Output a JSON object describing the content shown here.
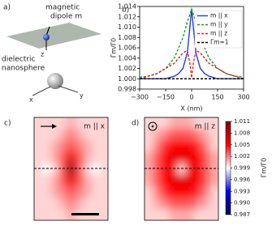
{
  "diagram": {
    "panel_label": "a)",
    "dipole_label": [
      "magnetic",
      "dipole m"
    ],
    "sphere_label": [
      "dielectric",
      "nanosphere"
    ],
    "axes": [
      "z",
      "x",
      "y"
    ]
  },
  "chart_data": [
    {
      "type": "line",
      "panel_label": "b)",
      "xlabel": "X (nm)",
      "ylabel": "Γm/Γ0",
      "x": [
        -300,
        -250,
        -200,
        -150,
        -100,
        -75,
        -50,
        -25,
        -10,
        0,
        10,
        25,
        50,
        75,
        100,
        150,
        200,
        250,
        300
      ],
      "series": [
        {
          "name": "m || x",
          "color": "#1f3fe0",
          "dash": "solid",
          "values": [
            1.0,
            1.0,
            1.0,
            1.0,
            1.0005,
            1.001,
            1.002,
            1.005,
            1.01,
            1.0135,
            1.01,
            1.005,
            1.002,
            1.001,
            1.0005,
            1.0,
            1.0,
            1.0,
            1.0
          ]
        },
        {
          "name": "m || y",
          "color": "#1a9a1a",
          "dash": "dashed",
          "values": [
            1.0003,
            1.0005,
            1.001,
            1.002,
            1.004,
            1.006,
            1.008,
            1.011,
            1.0125,
            1.0135,
            1.0125,
            1.011,
            1.008,
            1.006,
            1.004,
            1.002,
            1.001,
            1.0005,
            1.0003
          ]
        },
        {
          "name": "m || z",
          "color": "#e0202a",
          "dash": "dashed",
          "values": [
            1.0,
            1.0005,
            1.001,
            1.002,
            1.003,
            1.004,
            1.005,
            1.0055,
            1.003,
            1.0002,
            1.003,
            1.0055,
            1.005,
            1.004,
            1.003,
            1.002,
            1.001,
            1.0005,
            1.0
          ]
        },
        {
          "name": "Γm=1",
          "color": "#000000",
          "dash": "dashed",
          "values": [
            1,
            1,
            1,
            1,
            1,
            1,
            1,
            1,
            1,
            1,
            1,
            1,
            1,
            1,
            1,
            1,
            1,
            1,
            1
          ]
        }
      ],
      "xlim": [
        -300,
        300
      ],
      "xticks": [
        {
          "value": -300,
          "label": "−300"
        },
        {
          "value": -150,
          "label": "−150"
        },
        0,
        150,
        300
      ],
      "ylim": [
        0.998,
        1.014
      ],
      "yticks": [
        0.998,
        {
          "value": 1,
          "label": "1.000"
        },
        1.002,
        1.004,
        1.006,
        1.008,
        {
          "value": 1.01,
          "label": "1.010"
        },
        1.012,
        1.014
      ],
      "legend": "upper right"
    },
    {
      "type": "heatmap",
      "panel_label": "c)",
      "annotation": "m || x",
      "values": [
        [
          1.0,
          1.0,
          1.0,
          1.0,
          1.001,
          1.0,
          1.0,
          1.0,
          1.0
        ],
        [
          1.0,
          1.0,
          1.0,
          1.001,
          1.002,
          1.001,
          1.0,
          1.0,
          1.0
        ],
        [
          1.0,
          1.0,
          1.001,
          1.002,
          1.003,
          1.002,
          1.001,
          1.0,
          1.0
        ],
        [
          1.0,
          1.0,
          1.001,
          1.003,
          1.006,
          1.003,
          1.001,
          1.0,
          1.0
        ],
        [
          1.0,
          0.999,
          1.0,
          1.003,
          1.011,
          1.003,
          1.0,
          0.999,
          1.0
        ],
        [
          1.0,
          1.0,
          1.001,
          1.003,
          1.006,
          1.003,
          1.001,
          1.0,
          1.0
        ],
        [
          1.0,
          1.0,
          1.001,
          1.002,
          1.003,
          1.002,
          1.001,
          1.0,
          1.0
        ],
        [
          1.0,
          1.0,
          1.0,
          1.001,
          1.002,
          1.001,
          1.0,
          1.0,
          1.0
        ],
        [
          1.0,
          1.0,
          1.0,
          1.0,
          1.001,
          1.0,
          1.0,
          1.0,
          1.0
        ]
      ]
    },
    {
      "type": "heatmap",
      "panel_label": "d)",
      "annotation": "m || z",
      "values": [
        [
          1.0,
          1.0,
          1.0,
          1.001,
          1.001,
          1.001,
          1.0,
          1.0,
          1.0
        ],
        [
          1.0,
          1.001,
          1.002,
          1.003,
          1.003,
          1.003,
          1.002,
          1.001,
          1.0
        ],
        [
          1.0,
          1.002,
          1.004,
          1.005,
          1.005,
          1.005,
          1.004,
          1.002,
          1.0
        ],
        [
          1.001,
          1.003,
          1.005,
          1.006,
          1.006,
          1.006,
          1.005,
          1.003,
          1.001
        ],
        [
          1.001,
          1.003,
          1.005,
          1.006,
          1.0,
          1.006,
          1.005,
          1.003,
          1.001
        ],
        [
          1.001,
          1.003,
          1.005,
          1.006,
          1.006,
          1.006,
          1.005,
          1.003,
          1.001
        ],
        [
          1.0,
          1.002,
          1.004,
          1.005,
          1.005,
          1.005,
          1.004,
          1.002,
          1.0
        ],
        [
          1.0,
          1.001,
          1.002,
          1.003,
          1.003,
          1.003,
          1.002,
          1.001,
          1.0
        ],
        [
          1.0,
          1.0,
          1.0,
          1.001,
          1.001,
          1.001,
          1.0,
          1.0,
          1.0
        ]
      ]
    }
  ],
  "colorbar": {
    "label": "Γm/Γ0",
    "cmap": "seismic",
    "lim": [
      0.987,
      1.011
    ],
    "ticks": [
      1.011,
      1.008,
      1.005,
      1.002,
      0.999,
      0.996,
      0.993,
      {
        "value": 0.99,
        "label": "0.990"
      },
      0.987
    ]
  }
}
